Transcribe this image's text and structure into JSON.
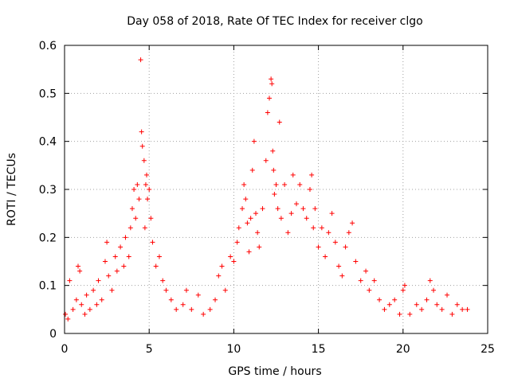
{
  "chart_data": {
    "type": "scatter",
    "title": "Day 058 of 2018, Rate Of TEC Index for receiver clgo",
    "xlabel": "GPS time / hours",
    "ylabel": "ROTI / TECUs",
    "xlim": [
      0,
      25
    ],
    "ylim": [
      0,
      0.6
    ],
    "xticks": [
      0,
      5,
      10,
      15,
      20,
      25
    ],
    "xtick_labels": [
      "0",
      "5",
      "10",
      "15",
      "20",
      "25"
    ],
    "yticks": [
      0,
      0.1,
      0.2,
      0.3,
      0.4,
      0.5,
      0.6
    ],
    "ytick_labels": [
      "0",
      "0.1",
      "0.2",
      "0.3",
      "0.4",
      "0.5",
      "0.6"
    ],
    "grid": true,
    "marker": "plus",
    "color": "#ff0000",
    "series": [
      {
        "name": "ROTI",
        "points": [
          [
            0.05,
            0.04
          ],
          [
            0.2,
            0.03
          ],
          [
            0.3,
            0.11
          ],
          [
            0.5,
            0.05
          ],
          [
            0.7,
            0.07
          ],
          [
            0.8,
            0.14
          ],
          [
            0.9,
            0.13
          ],
          [
            1.0,
            0.06
          ],
          [
            1.2,
            0.04
          ],
          [
            1.3,
            0.08
          ],
          [
            1.5,
            0.05
          ],
          [
            1.7,
            0.09
          ],
          [
            1.9,
            0.06
          ],
          [
            2.0,
            0.11
          ],
          [
            2.2,
            0.07
          ],
          [
            2.4,
            0.15
          ],
          [
            2.5,
            0.19
          ],
          [
            2.6,
            0.12
          ],
          [
            2.8,
            0.09
          ],
          [
            3.0,
            0.16
          ],
          [
            3.1,
            0.13
          ],
          [
            3.3,
            0.18
          ],
          [
            3.5,
            0.14
          ],
          [
            3.6,
            0.2
          ],
          [
            3.8,
            0.16
          ],
          [
            3.9,
            0.22
          ],
          [
            4.0,
            0.26
          ],
          [
            4.1,
            0.3
          ],
          [
            4.2,
            0.24
          ],
          [
            4.3,
            0.31
          ],
          [
            4.4,
            0.28
          ],
          [
            4.5,
            0.57
          ],
          [
            4.55,
            0.42
          ],
          [
            4.6,
            0.39
          ],
          [
            4.7,
            0.36
          ],
          [
            4.75,
            0.22
          ],
          [
            4.8,
            0.31
          ],
          [
            4.85,
            0.33
          ],
          [
            4.9,
            0.28
          ],
          [
            5.0,
            0.3
          ],
          [
            5.1,
            0.24
          ],
          [
            5.2,
            0.19
          ],
          [
            5.4,
            0.14
          ],
          [
            5.6,
            0.16
          ],
          [
            5.8,
            0.11
          ],
          [
            6.0,
            0.09
          ],
          [
            6.3,
            0.07
          ],
          [
            6.6,
            0.05
          ],
          [
            7.0,
            0.06
          ],
          [
            7.2,
            0.09
          ],
          [
            7.5,
            0.05
          ],
          [
            7.9,
            0.08
          ],
          [
            8.2,
            0.04
          ],
          [
            8.6,
            0.05
          ],
          [
            8.9,
            0.07
          ],
          [
            9.1,
            0.12
          ],
          [
            9.3,
            0.14
          ],
          [
            9.5,
            0.09
          ],
          [
            9.8,
            0.16
          ],
          [
            10.0,
            0.15
          ],
          [
            10.2,
            0.19
          ],
          [
            10.3,
            0.22
          ],
          [
            10.5,
            0.26
          ],
          [
            10.6,
            0.31
          ],
          [
            10.7,
            0.28
          ],
          [
            10.8,
            0.23
          ],
          [
            10.9,
            0.17
          ],
          [
            11.0,
            0.24
          ],
          [
            11.1,
            0.34
          ],
          [
            11.2,
            0.4
          ],
          [
            11.3,
            0.25
          ],
          [
            11.4,
            0.21
          ],
          [
            11.5,
            0.18
          ],
          [
            11.7,
            0.26
          ],
          [
            11.9,
            0.36
          ],
          [
            12.0,
            0.46
          ],
          [
            12.1,
            0.49
          ],
          [
            12.2,
            0.53
          ],
          [
            12.25,
            0.52
          ],
          [
            12.3,
            0.38
          ],
          [
            12.35,
            0.34
          ],
          [
            12.4,
            0.29
          ],
          [
            12.5,
            0.31
          ],
          [
            12.6,
            0.26
          ],
          [
            12.7,
            0.44
          ],
          [
            12.8,
            0.24
          ],
          [
            13.0,
            0.31
          ],
          [
            13.2,
            0.21
          ],
          [
            13.4,
            0.25
          ],
          [
            13.5,
            0.33
          ],
          [
            13.7,
            0.27
          ],
          [
            13.9,
            0.31
          ],
          [
            14.1,
            0.26
          ],
          [
            14.3,
            0.24
          ],
          [
            14.5,
            0.3
          ],
          [
            14.6,
            0.33
          ],
          [
            14.7,
            0.22
          ],
          [
            14.8,
            0.26
          ],
          [
            15.0,
            0.18
          ],
          [
            15.2,
            0.22
          ],
          [
            15.4,
            0.16
          ],
          [
            15.6,
            0.21
          ],
          [
            15.8,
            0.25
          ],
          [
            16.0,
            0.19
          ],
          [
            16.2,
            0.14
          ],
          [
            16.4,
            0.12
          ],
          [
            16.6,
            0.18
          ],
          [
            16.8,
            0.21
          ],
          [
            17.0,
            0.23
          ],
          [
            17.2,
            0.15
          ],
          [
            17.5,
            0.11
          ],
          [
            17.8,
            0.13
          ],
          [
            18.0,
            0.09
          ],
          [
            18.3,
            0.11
          ],
          [
            18.6,
            0.07
          ],
          [
            18.9,
            0.05
          ],
          [
            19.2,
            0.06
          ],
          [
            19.5,
            0.07
          ],
          [
            19.8,
            0.04
          ],
          [
            20.0,
            0.09
          ],
          [
            20.1,
            0.1
          ],
          [
            20.4,
            0.04
          ],
          [
            20.8,
            0.06
          ],
          [
            21.1,
            0.05
          ],
          [
            21.4,
            0.07
          ],
          [
            21.6,
            0.11
          ],
          [
            21.8,
            0.09
          ],
          [
            22.0,
            0.06
          ],
          [
            22.3,
            0.05
          ],
          [
            22.6,
            0.08
          ],
          [
            22.9,
            0.04
          ],
          [
            23.2,
            0.06
          ],
          [
            23.5,
            0.05
          ],
          [
            23.8,
            0.05
          ]
        ]
      }
    ]
  }
}
